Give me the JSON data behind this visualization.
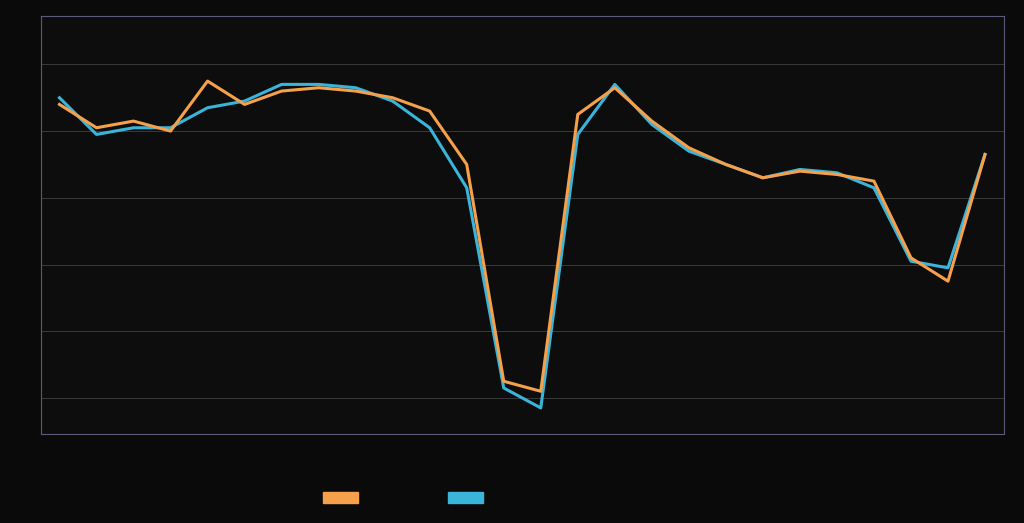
{
  "orange_series": [
    2.8,
    2.1,
    2.3,
    2.0,
    3.5,
    2.8,
    3.2,
    3.3,
    3.2,
    3.0,
    2.6,
    1.0,
    -5.5,
    -5.8,
    2.5,
    3.3,
    2.3,
    1.5,
    1.0,
    0.6,
    0.8,
    0.7,
    0.5,
    -1.8,
    -2.5,
    1.3
  ],
  "blue_series": [
    3.0,
    1.9,
    2.1,
    2.1,
    2.7,
    2.9,
    3.4,
    3.4,
    3.3,
    2.9,
    2.1,
    0.3,
    -5.7,
    -6.3,
    1.9,
    3.4,
    2.2,
    1.4,
    1.0,
    0.6,
    0.85,
    0.75,
    0.3,
    -1.9,
    -2.1,
    1.3
  ],
  "orange_color": "#F5A04A",
  "blue_color": "#3AB4D8",
  "background_color": "#0a0a0a",
  "plot_bg_color": "#0d0d0d",
  "grid_color": "#3a3a3a",
  "spine_color": "#5a5a7a",
  "line_width": 2.2,
  "legend_orange_label": "",
  "legend_blue_label": ""
}
